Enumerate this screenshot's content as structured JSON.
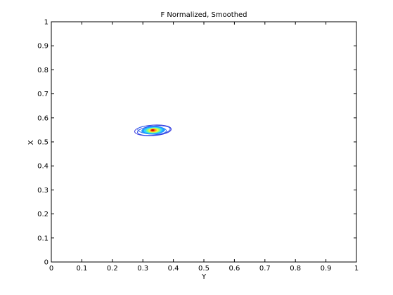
{
  "chart_data": {
    "type": "contour",
    "title": "F Normalized, Smoothed",
    "xlabel": "Y",
    "ylabel": "X",
    "xlim": [
      0,
      1
    ],
    "ylim": [
      0,
      1
    ],
    "xticks": [
      "0",
      "0.1",
      "0.2",
      "0.3",
      "0.4",
      "0.5",
      "0.6",
      "0.7",
      "0.8",
      "0.9",
      "1"
    ],
    "yticks": [
      "0",
      "0.1",
      "0.2",
      "0.3",
      "0.4",
      "0.5",
      "0.6",
      "0.7",
      "0.8",
      "0.9",
      "1"
    ],
    "grid": false,
    "box": true,
    "peak": {
      "x": 0.335,
      "y": 0.548
    },
    "contours": [
      {
        "color": "#3a3adf",
        "fill": false,
        "center": [
          0.333,
          0.548
        ],
        "rx": 0.06,
        "ry": 0.022,
        "rotation_deg": -4
      },
      {
        "color": "#2f4ee6",
        "fill": false,
        "center": [
          0.336,
          0.547
        ],
        "rx": 0.054,
        "ry": 0.019,
        "rotation_deg": -6
      },
      {
        "color": "#3a6df0",
        "fill": false,
        "center": [
          0.33,
          0.549
        ],
        "rx": 0.047,
        "ry": 0.017,
        "rotation_deg": 3
      },
      {
        "color": "#1f9bff",
        "fill": true,
        "center": [
          0.334,
          0.548
        ],
        "rx": 0.038,
        "ry": 0.015,
        "rotation_deg": -3
      },
      {
        "color": "#34d3ff",
        "fill": true,
        "center": [
          0.334,
          0.548
        ],
        "rx": 0.03,
        "ry": 0.012,
        "rotation_deg": -3
      },
      {
        "color": "#7fff80",
        "fill": true,
        "center": [
          0.335,
          0.548
        ],
        "rx": 0.023,
        "ry": 0.01,
        "rotation_deg": -3
      },
      {
        "color": "#f5f53a",
        "fill": true,
        "center": [
          0.335,
          0.548
        ],
        "rx": 0.016,
        "ry": 0.0075,
        "rotation_deg": -3
      },
      {
        "color": "#ffb320",
        "fill": true,
        "center": [
          0.334,
          0.548
        ],
        "rx": 0.011,
        "ry": 0.0055,
        "rotation_deg": -3
      },
      {
        "color": "#ff4a1a",
        "fill": true,
        "center": [
          0.333,
          0.548
        ],
        "rx": 0.007,
        "ry": 0.0038,
        "rotation_deg": -3
      },
      {
        "color": "#cc0000",
        "fill": true,
        "center": [
          0.332,
          0.549
        ],
        "rx": 0.0035,
        "ry": 0.0022,
        "rotation_deg": 0
      }
    ]
  }
}
